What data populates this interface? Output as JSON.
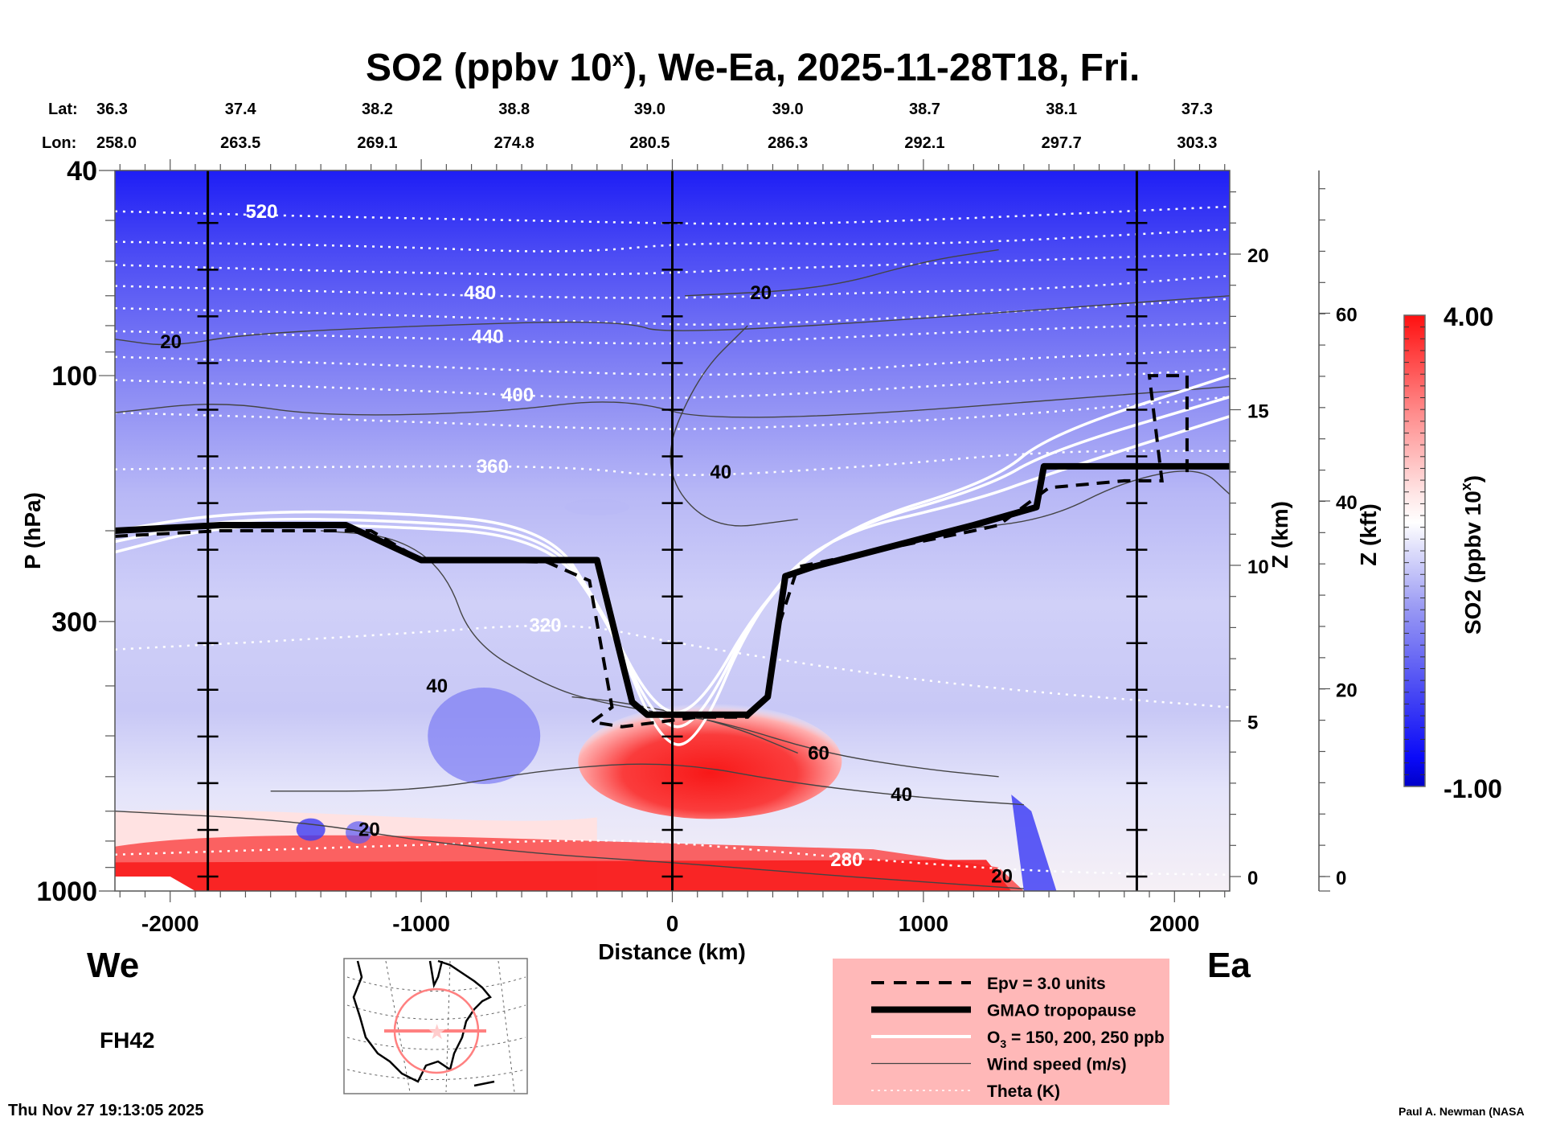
{
  "chart_data": {
    "type": "heatmap",
    "title": "SO2 (ppbv 10",
    "title_sup": "x",
    "title_rest": "), We-Ea, 2025-11-28T18, Fri.",
    "xlabel": "Distance (km)",
    "ylabel": "P (hPa)",
    "y2label": "Z (km)",
    "y3label": "Z (kft)",
    "colorbar_label": "SO2 (ppbv 10",
    "colorbar_label_sup": "x",
    "colorbar_label_end": ")",
    "colorbar_range": [
      -1.0,
      4.0
    ],
    "colorbar_max_label": "4.00",
    "colorbar_min_label": "-1.00",
    "xlim": [
      -2220,
      2220
    ],
    "ylim_hpa": [
      1000,
      40
    ],
    "x_ticks": [
      -2000,
      -1000,
      0,
      1000,
      2000
    ],
    "x_tick_labels": [
      "-2000",
      "-1000",
      "0",
      "1000",
      "2000"
    ],
    "y_ticks_hpa": [
      40,
      100,
      300,
      1000
    ],
    "y_tick_labels": [
      "40",
      "100",
      "300",
      "1000"
    ],
    "z_km_ticks": [
      0,
      5,
      10,
      15,
      20
    ],
    "z_km_tick_labels": [
      "0",
      "5",
      "10",
      "15",
      "20"
    ],
    "z_kft_ticks": [
      0,
      20,
      40,
      60
    ],
    "z_kft_tick_labels": [
      "0",
      "20",
      "40",
      "60"
    ],
    "lat_label": "Lat:",
    "lon_label": "Lon:",
    "lat_values": [
      "36.3",
      "37.4",
      "38.2",
      "38.8",
      "39.0",
      "39.0",
      "38.7",
      "38.1",
      "37.3"
    ],
    "lon_values": [
      "258.0",
      "263.5",
      "269.1",
      "274.8",
      "280.5",
      "286.3",
      "292.1",
      "297.7",
      "303.3"
    ],
    "lat_lon_x_km": [
      -2050,
      -1720,
      -1175,
      -630,
      -90,
      460,
      1005,
      1550,
      2090
    ],
    "vertical_markers_km": [
      -1850,
      0,
      1850
    ],
    "west_label": "We",
    "east_label": "Ea",
    "forecast_hour": "FH42",
    "timestamp": "Thu Nov 27 19:13:05 2025",
    "credit": "Paul A. Newman (NASA",
    "legend": [
      {
        "label": "Epv = 3.0 units",
        "style": "dashed"
      },
      {
        "label": "GMAO tropopause",
        "style": "thick"
      },
      {
        "label": "O",
        "sub": "3",
        "label_rest": " = 150, 200, 250 ppb",
        "style": "white"
      },
      {
        "label": "Wind speed (m/s)",
        "style": "thin"
      },
      {
        "label": "Theta (K)",
        "style": "dotted"
      }
    ],
    "so2_regions": [
      {
        "name": "upper-strat-blue",
        "value": -0.8
      },
      {
        "name": "lower-trop-red-west",
        "value": 3.5
      },
      {
        "name": "central-red-dome",
        "value": 3.8
      },
      {
        "name": "surface-red-east",
        "value": 3.0
      },
      {
        "name": "east-blue-streaks",
        "value": -0.9
      }
    ],
    "theta_contours": [
      {
        "label": "520",
        "points": [
          [
            -2220,
            48
          ],
          [
            -1500,
            49
          ],
          [
            -600,
            50
          ],
          [
            300,
            51
          ],
          [
            1000,
            50
          ],
          [
            2220,
            47
          ]
        ],
        "label_at": [
          -1700,
          48
        ]
      },
      {
        "label": "",
        "points": [
          [
            -2220,
            55
          ],
          [
            -1200,
            56
          ],
          [
            -400,
            58
          ],
          [
            100,
            55
          ],
          [
            1000,
            56
          ],
          [
            2220,
            52
          ]
        ]
      },
      {
        "label": "",
        "points": [
          [
            -2220,
            61
          ],
          [
            -1200,
            63
          ],
          [
            -300,
            64
          ],
          [
            400,
            62
          ],
          [
            1300,
            60
          ],
          [
            2220,
            58
          ]
        ]
      },
      {
        "label": "480",
        "points": [
          [
            -2220,
            67
          ],
          [
            -1200,
            69
          ],
          [
            -800,
            70
          ],
          [
            0,
            71
          ],
          [
            800,
            69
          ],
          [
            1500,
            68
          ],
          [
            2220,
            64
          ]
        ],
        "label_at": [
          -830,
          69
        ]
      },
      {
        "label": "",
        "points": [
          [
            -2220,
            74
          ],
          [
            -1200,
            76
          ],
          [
            -200,
            79
          ],
          [
            200,
            80
          ],
          [
            1000,
            77
          ],
          [
            2220,
            71
          ]
        ]
      },
      {
        "label": "440",
        "points": [
          [
            -2220,
            82
          ],
          [
            -1200,
            84
          ],
          [
            -200,
            87
          ],
          [
            300,
            86
          ],
          [
            1200,
            82
          ],
          [
            2220,
            79
          ]
        ],
        "label_at": [
          -800,
          84
        ]
      },
      {
        "label": "",
        "points": [
          [
            -2220,
            92
          ],
          [
            -1200,
            95
          ],
          [
            -100,
            100
          ],
          [
            500,
            99
          ],
          [
            1300,
            93
          ],
          [
            2220,
            89
          ]
        ]
      },
      {
        "label": "400",
        "points": [
          [
            -2220,
            102
          ],
          [
            -1200,
            106
          ],
          [
            -300,
            111
          ],
          [
            300,
            110
          ],
          [
            1300,
            103
          ],
          [
            2220,
            97
          ]
        ],
        "label_at": [
          -680,
          109
        ]
      },
      {
        "label": "",
        "points": [
          [
            -2220,
            118
          ],
          [
            -1200,
            122
          ],
          [
            -100,
            128
          ],
          [
            600,
            125
          ],
          [
            1300,
            120
          ],
          [
            2220,
            110
          ]
        ]
      },
      {
        "label": "360",
        "points": [
          [
            -2220,
            152
          ],
          [
            -1200,
            150
          ],
          [
            -400,
            150
          ],
          [
            0,
            158
          ],
          [
            800,
            150
          ],
          [
            1500,
            140
          ],
          [
            2220,
            140
          ]
        ],
        "label_at": [
          -780,
          150
        ]
      },
      {
        "label": "320",
        "points": [
          [
            -2220,
            340
          ],
          [
            -1200,
            320
          ],
          [
            -400,
            300
          ],
          [
            0,
            330
          ],
          [
            800,
            380
          ],
          [
            1400,
            410
          ],
          [
            2220,
            440
          ]
        ],
        "label_at": [
          -570,
          305
        ]
      },
      {
        "label": "280",
        "points": [
          [
            -2220,
            850
          ],
          [
            -1200,
            820
          ],
          [
            -200,
            790
          ],
          [
            300,
            830
          ],
          [
            800,
            870
          ],
          [
            1500,
            920
          ],
          [
            2220,
            930
          ]
        ],
        "label_at": [
          630,
          870
        ]
      }
    ],
    "wind_contours": [
      {
        "label": "20",
        "points": [
          [
            -2220,
            85
          ],
          [
            -2000,
            88
          ],
          [
            -1700,
            83
          ],
          [
            -1000,
            80
          ],
          [
            -200,
            78
          ],
          [
            0,
            84
          ],
          [
            2220,
            70
          ]
        ],
        "label_at": [
          -2040,
          86
        ]
      },
      {
        "label": "20",
        "points": [
          [
            -2220,
            118
          ],
          [
            -1800,
            112
          ],
          [
            -1400,
            120
          ],
          [
            -700,
            118
          ],
          [
            -200,
            110
          ],
          [
            200,
            125
          ],
          [
            2220,
            105
          ]
        ]
      },
      {
        "label": "40",
        "points": [
          [
            -1400,
            200
          ],
          [
            -1100,
            205
          ],
          [
            -900,
            240
          ],
          [
            -800,
            330
          ],
          [
            -500,
            400
          ],
          [
            -300,
            430
          ],
          [
            0,
            455
          ],
          [
            200,
            470
          ],
          [
            600,
            540
          ],
          [
            1000,
            580
          ],
          [
            1300,
            600
          ]
        ],
        "label_at": [
          -980,
          400
        ]
      },
      {
        "label": "60",
        "points": [
          [
            -400,
            420
          ],
          [
            -200,
            430
          ],
          [
            200,
            470
          ],
          [
            500,
            540
          ]
        ],
        "label_at": [
          540,
          540
        ]
      },
      {
        "label": "40",
        "points": [
          [
            -1600,
            640
          ],
          [
            -1000,
            640
          ],
          [
            -500,
            580
          ],
          [
            0,
            560
          ],
          [
            500,
            620
          ],
          [
            1000,
            660
          ],
          [
            1400,
            680
          ]
        ],
        "label_at": [
          870,
          650
        ]
      },
      {
        "label": "20",
        "points": [
          [
            -2220,
            700
          ],
          [
            -1500,
            730
          ],
          [
            -1000,
            800
          ],
          [
            -500,
            850
          ],
          [
            0,
            880
          ],
          [
            600,
            930
          ],
          [
            1000,
            960
          ],
          [
            1400,
            990
          ]
        ],
        "label_at": [
          -1250,
          760
        ]
      },
      {
        "label": "20",
        "points": [
          [
            1100,
            200
          ],
          [
            1500,
            190
          ],
          [
            1800,
            160
          ],
          [
            2100,
            150
          ],
          [
            2220,
            170
          ]
        ],
        "label_at": [
          1270,
          935
        ]
      },
      {
        "label": "40",
        "points": [
          [
            300,
            80
          ],
          [
            100,
            100
          ],
          [
            -50,
            150
          ],
          [
            150,
            200
          ],
          [
            500,
            190
          ]
        ],
        "label_at": [
          150,
          154
        ]
      },
      {
        "label": "20",
        "points": [
          [
            50,
            70
          ],
          [
            600,
            68
          ],
          [
            1000,
            60
          ],
          [
            1300,
            57
          ]
        ],
        "label_at": [
          310,
          69
        ]
      }
    ],
    "ozone_contours": [
      [
        [
          -2220,
          220
        ],
        [
          -1800,
          195
        ],
        [
          -1200,
          195
        ],
        [
          -500,
          205
        ],
        [
          -250,
          300
        ],
        [
          -50,
          520
        ],
        [
          100,
          520
        ],
        [
          320,
          290
        ],
        [
          600,
          205
        ],
        [
          1200,
          175
        ],
        [
          1500,
          155
        ],
        [
          2220,
          120
        ]
      ],
      [
        [
          -2220,
          210
        ],
        [
          -1800,
          190
        ],
        [
          -1200,
          190
        ],
        [
          -500,
          200
        ],
        [
          -270,
          290
        ],
        [
          -60,
          480
        ],
        [
          100,
          480
        ],
        [
          340,
          280
        ],
        [
          650,
          200
        ],
        [
          1250,
          165
        ],
        [
          1500,
          140
        ],
        [
          2220,
          110
        ]
      ],
      [
        [
          -2220,
          200
        ],
        [
          -1800,
          185
        ],
        [
          -1200,
          183
        ],
        [
          -500,
          195
        ],
        [
          -290,
          280
        ],
        [
          -70,
          450
        ],
        [
          100,
          450
        ],
        [
          360,
          270
        ],
        [
          700,
          195
        ],
        [
          1280,
          160
        ],
        [
          1500,
          130
        ],
        [
          2220,
          100
        ]
      ]
    ],
    "epv_contour": [
      [
        -2220,
        205
      ],
      [
        -1800,
        200
      ],
      [
        -1200,
        200
      ],
      [
        -1000,
        228
      ],
      [
        -500,
        230
      ],
      [
        -330,
        250
      ],
      [
        -240,
        440
      ],
      [
        -320,
        470
      ],
      [
        -200,
        480
      ],
      [
        100,
        460
      ],
      [
        300,
        460
      ],
      [
        380,
        420
      ],
      [
        420,
        310
      ],
      [
        500,
        235
      ],
      [
        1200,
        200
      ],
      [
        1300,
        195
      ],
      [
        1500,
        165
      ],
      [
        1800,
        160
      ],
      [
        1950,
        160
      ],
      [
        1900,
        100
      ],
      [
        2050,
        100
      ],
      [
        2050,
        155
      ]
    ],
    "tropopause": [
      [
        -2220,
        200
      ],
      [
        -1800,
        195
      ],
      [
        -1300,
        195
      ],
      [
        -1000,
        228
      ],
      [
        -300,
        228
      ],
      [
        -160,
        430
      ],
      [
        -100,
        455
      ],
      [
        300,
        455
      ],
      [
        380,
        420
      ],
      [
        450,
        245
      ],
      [
        560,
        235
      ],
      [
        1200,
        195
      ],
      [
        1450,
        180
      ],
      [
        1480,
        150
      ],
      [
        2220,
        150
      ]
    ]
  }
}
